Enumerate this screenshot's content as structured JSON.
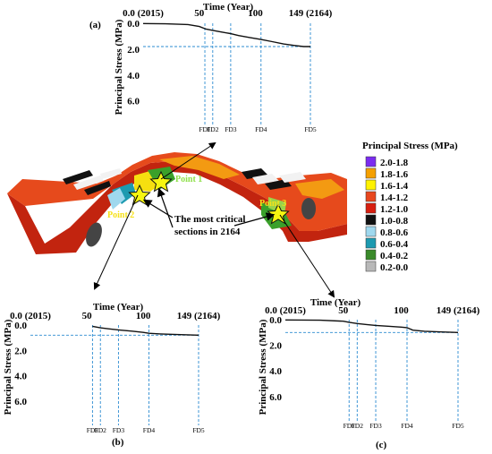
{
  "panels": [
    {
      "id": "a",
      "label": "(a)",
      "x_title": "Time (Year)",
      "y_title": "Principal Stress (MPa)",
      "x_ticks": [
        {
          "value": 0,
          "label": "0.0 (2015)"
        },
        {
          "value": 50,
          "label": "50"
        },
        {
          "value": 100,
          "label": "100"
        },
        {
          "value": 149,
          "label": "149 (2164)"
        }
      ],
      "y_ticks": [
        {
          "value": 0.0,
          "label": "0.0"
        },
        {
          "value": 2.0,
          "label": "2.0"
        },
        {
          "value": 4.0,
          "label": "4.0"
        },
        {
          "value": 6.0,
          "label": "6.0"
        }
      ],
      "fd_markers": [
        {
          "label": "FD1",
          "x": 55
        },
        {
          "label": "FD2",
          "x": 62
        },
        {
          "label": "FD3",
          "x": 78
        },
        {
          "label": "FD4",
          "x": 105
        },
        {
          "label": "FD5",
          "x": 149
        }
      ],
      "final_stress": 1.8,
      "series": [
        [
          0,
          0.02
        ],
        [
          20,
          0.04
        ],
        [
          40,
          0.1
        ],
        [
          50,
          0.25
        ],
        [
          56,
          0.45
        ],
        [
          62,
          0.55
        ],
        [
          70,
          0.68
        ],
        [
          78,
          0.8
        ],
        [
          85,
          0.95
        ],
        [
          95,
          1.1
        ],
        [
          105,
          1.25
        ],
        [
          115,
          1.42
        ],
        [
          125,
          1.6
        ],
        [
          135,
          1.72
        ],
        [
          143,
          1.8
        ],
        [
          149,
          1.8
        ]
      ]
    },
    {
      "id": "b",
      "label": "(b)",
      "x_title": "Time (Year)",
      "y_title": "Principal Stress (MPa)",
      "x_ticks": [
        {
          "value": 0,
          "label": "0.0 (2015)"
        },
        {
          "value": 50,
          "label": "50"
        },
        {
          "value": 100,
          "label": "100"
        },
        {
          "value": 149,
          "label": "149 (2164)"
        }
      ],
      "y_ticks": [
        {
          "value": 0.0,
          "label": "0.0"
        },
        {
          "value": 2.0,
          "label": "2.0"
        },
        {
          "value": 4.0,
          "label": "4.0"
        },
        {
          "value": 6.0,
          "label": "6.0"
        }
      ],
      "fd_markers": [
        {
          "label": "FD1",
          "x": 55
        },
        {
          "label": "FD2",
          "x": 62
        },
        {
          "label": "FD3",
          "x": 78
        },
        {
          "label": "FD4",
          "x": 105
        },
        {
          "label": "FD5",
          "x": 149
        }
      ],
      "final_stress": 0.8,
      "series": [
        [
          55,
          0.1
        ],
        [
          62,
          0.22
        ],
        [
          70,
          0.3
        ],
        [
          78,
          0.38
        ],
        [
          90,
          0.48
        ],
        [
          100,
          0.58
        ],
        [
          105,
          0.65
        ],
        [
          115,
          0.7
        ],
        [
          130,
          0.75
        ],
        [
          149,
          0.8
        ]
      ]
    },
    {
      "id": "c",
      "label": "(c)",
      "x_title": "Time (Year)",
      "y_title": "Principal Stress (MPa)",
      "x_ticks": [
        {
          "value": 0,
          "label": "0.0 (2015)"
        },
        {
          "value": 50,
          "label": "50"
        },
        {
          "value": 100,
          "label": "100"
        },
        {
          "value": 149,
          "label": "149 (2164)"
        }
      ],
      "y_ticks": [
        {
          "value": 0.0,
          "label": "0.0"
        },
        {
          "value": 2.0,
          "label": "2.0"
        },
        {
          "value": 4.0,
          "label": "4.0"
        },
        {
          "value": 6.0,
          "label": "6.0"
        }
      ],
      "fd_markers": [
        {
          "label": "FD1",
          "x": 55
        },
        {
          "label": "FD2",
          "x": 62
        },
        {
          "label": "FD3",
          "x": 78
        },
        {
          "label": "FD4",
          "x": 105
        },
        {
          "label": "FD5",
          "x": 149
        }
      ],
      "final_stress": 1.0,
      "series": [
        [
          0,
          0.02
        ],
        [
          30,
          0.04
        ],
        [
          50,
          0.12
        ],
        [
          55,
          0.2
        ],
        [
          62,
          0.3
        ],
        [
          70,
          0.38
        ],
        [
          78,
          0.45
        ],
        [
          90,
          0.52
        ],
        [
          100,
          0.58
        ],
        [
          105,
          0.62
        ],
        [
          110,
          0.82
        ],
        [
          120,
          0.9
        ],
        [
          135,
          0.96
        ],
        [
          149,
          1.0
        ]
      ]
    }
  ],
  "legend": {
    "title": "Principal Stress (MPa)",
    "items": [
      {
        "label": "2.0-1.8",
        "color": "#7b2cf0"
      },
      {
        "label": "1.8-1.6",
        "color": "#f5a000"
      },
      {
        "label": "1.6-1.4",
        "color": "#fff200"
      },
      {
        "label": "1.4-1.2",
        "color": "#e8471e"
      },
      {
        "label": "1.2-1.0",
        "color": "#d81f10"
      },
      {
        "label": "1.0-0.8",
        "color": "#111111"
      },
      {
        "label": "0.8-0.6",
        "color": "#9fd8ee"
      },
      {
        "label": "0.6-0.4",
        "color": "#1d9ab0"
      },
      {
        "label": "0.4-0.2",
        "color": "#3a8a2a"
      },
      {
        "label": "0.2-0.0",
        "color": "#b8b8b8"
      }
    ]
  },
  "model_labels": {
    "point1": "Point 1",
    "point2": "Point 2",
    "point3": "Point 3",
    "critical_line1": "The most critical",
    "critical_line2": "sections in 2164"
  }
}
